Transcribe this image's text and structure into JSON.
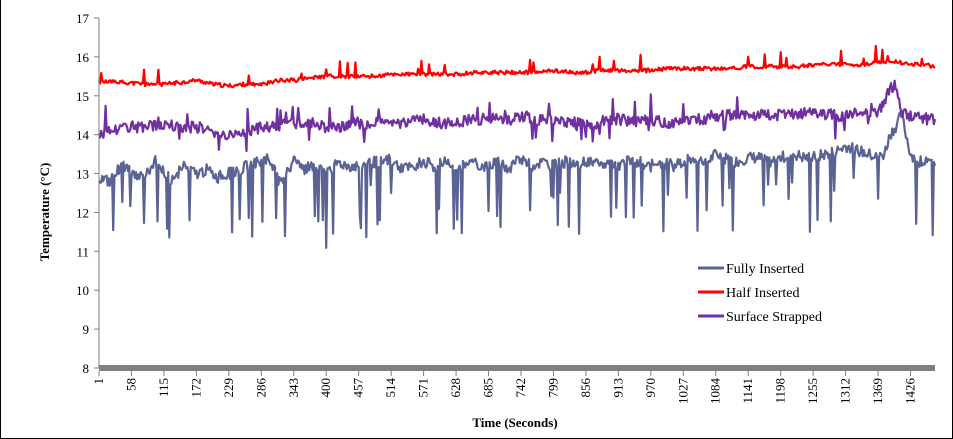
{
  "chart_data": {
    "type": "line",
    "title": "",
    "xlabel": "Time (Seconds)",
    "ylabel": "Temperature (°C)",
    "xlim": [
      1,
      1469
    ],
    "ylim": [
      8,
      17
    ],
    "yticks": [
      "8",
      "9",
      "10",
      "11",
      "12",
      "13",
      "14",
      "15",
      "16",
      "17"
    ],
    "xticks": [
      "1",
      "58",
      "115",
      "172",
      "229",
      "286",
      "343",
      "400",
      "457",
      "514",
      "571",
      "628",
      "685",
      "742",
      "799",
      "856",
      "913",
      "970",
      "1027",
      "1084",
      "1141",
      "1198",
      "1255",
      "1312",
      "1369",
      "1426"
    ],
    "grid": false,
    "legend_position": "lower-right",
    "series": [
      {
        "name": "Fully Inserted",
        "color": "#5b6394",
        "x": [
          1,
          20,
          40,
          60,
          80,
          100,
          115,
          130,
          150,
          172,
          190,
          210,
          229,
          250,
          270,
          286,
          300,
          320,
          343,
          360,
          380,
          400,
          420,
          440,
          457,
          480,
          500,
          514,
          530,
          550,
          571,
          590,
          610,
          628,
          650,
          670,
          685,
          700,
          720,
          742,
          760,
          780,
          799,
          820,
          840,
          856,
          880,
          900,
          913,
          930,
          950,
          970,
          990,
          1010,
          1027,
          1050,
          1070,
          1084,
          1100,
          1120,
          1141,
          1160,
          1180,
          1198,
          1220,
          1240,
          1255,
          1280,
          1300,
          1312,
          1330,
          1350,
          1369,
          1380,
          1390,
          1400,
          1410,
          1426,
          1440,
          1455,
          1469
        ],
        "values": [
          12.9,
          12.8,
          13.2,
          13.0,
          12.9,
          13.3,
          13.0,
          12.8,
          13.2,
          13.0,
          13.1,
          12.9,
          13.0,
          13.1,
          13.3,
          13.3,
          13.4,
          12.7,
          13.3,
          13.1,
          13.2,
          13.0,
          13.3,
          13.2,
          13.2,
          13.3,
          13.3,
          13.4,
          13.1,
          13.2,
          13.3,
          13.2,
          13.3,
          13.2,
          13.3,
          13.2,
          13.2,
          13.3,
          13.1,
          13.4,
          13.2,
          13.3,
          13.2,
          13.3,
          13.2,
          13.3,
          13.2,
          13.3,
          13.2,
          13.3,
          13.3,
          13.2,
          13.3,
          13.2,
          13.3,
          13.4,
          13.3,
          13.5,
          13.4,
          13.3,
          13.4,
          13.4,
          13.3,
          13.4,
          13.5,
          13.4,
          13.4,
          13.5,
          13.6,
          13.7,
          13.6,
          13.5,
          13.4,
          13.5,
          14.0,
          14.2,
          14.5,
          13.5,
          13.3,
          13.4,
          13.2
        ]
      },
      {
        "name": "Half Inserted",
        "color": "#ff0000",
        "x": [
          1,
          40,
          80,
          115,
          150,
          172,
          200,
          229,
          260,
          286,
          320,
          343,
          370,
          400,
          430,
          457,
          490,
          514,
          540,
          571,
          600,
          628,
          660,
          685,
          710,
          742,
          770,
          799,
          830,
          856,
          880,
          913,
          940,
          970,
          1000,
          1027,
          1060,
          1084,
          1110,
          1141,
          1170,
          1198,
          1230,
          1255,
          1290,
          1312,
          1340,
          1369,
          1390,
          1410,
          1426,
          1450,
          1469
        ],
        "values": [
          15.35,
          15.35,
          15.3,
          15.3,
          15.35,
          15.4,
          15.3,
          15.25,
          15.3,
          15.3,
          15.4,
          15.4,
          15.45,
          15.5,
          15.5,
          15.5,
          15.5,
          15.55,
          15.55,
          15.55,
          15.55,
          15.55,
          15.6,
          15.6,
          15.6,
          15.6,
          15.6,
          15.65,
          15.6,
          15.6,
          15.65,
          15.65,
          15.65,
          15.65,
          15.7,
          15.7,
          15.7,
          15.7,
          15.7,
          15.75,
          15.75,
          15.75,
          15.75,
          15.8,
          15.8,
          15.8,
          15.8,
          15.85,
          15.9,
          15.85,
          15.8,
          15.8,
          15.75
        ]
      },
      {
        "name": "Surface Strapped",
        "color": "#7030a0",
        "x": [
          1,
          30,
          60,
          90,
          115,
          140,
          172,
          200,
          229,
          260,
          286,
          310,
          343,
          370,
          400,
          430,
          457,
          490,
          514,
          540,
          571,
          600,
          628,
          660,
          685,
          710,
          742,
          770,
          799,
          830,
          856,
          880,
          913,
          940,
          970,
          1000,
          1027,
          1060,
          1084,
          1110,
          1141,
          1170,
          1198,
          1230,
          1255,
          1290,
          1312,
          1340,
          1369,
          1380,
          1390,
          1400,
          1410,
          1426,
          1440,
          1455,
          1469
        ],
        "values": [
          14.0,
          14.1,
          14.2,
          14.2,
          14.3,
          14.2,
          14.2,
          14.1,
          14.0,
          14.1,
          14.2,
          14.2,
          14.3,
          14.3,
          14.2,
          14.2,
          14.3,
          14.3,
          14.3,
          14.3,
          14.4,
          14.3,
          14.3,
          14.4,
          14.4,
          14.4,
          14.5,
          14.4,
          14.4,
          14.3,
          14.3,
          14.3,
          14.4,
          14.3,
          14.4,
          14.3,
          14.4,
          14.4,
          14.5,
          14.5,
          14.5,
          14.5,
          14.5,
          14.5,
          14.6,
          14.5,
          14.5,
          14.6,
          14.6,
          14.8,
          15.2,
          15.3,
          14.6,
          14.5,
          14.5,
          14.4,
          14.4
        ]
      }
    ]
  }
}
